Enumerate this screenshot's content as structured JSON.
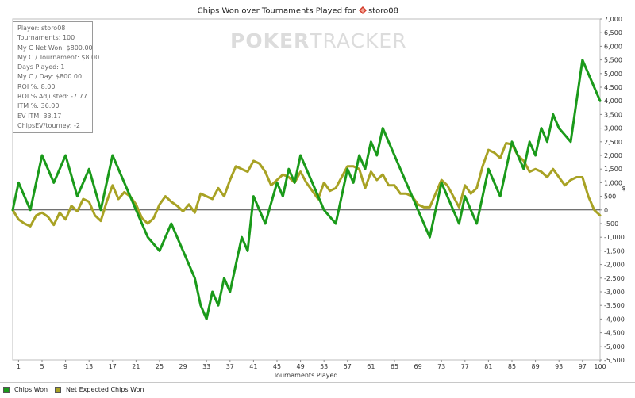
{
  "chart_data": {
    "type": "line",
    "title": "Chips Won over Tournaments Played for",
    "player_name": "storo08",
    "xlabel": "Tournaments Played",
    "ylabel": "$",
    "xlim": [
      0,
      100
    ],
    "ylim": [
      -5500,
      7000
    ],
    "y_ticks": [
      7000,
      6500,
      6000,
      5500,
      5000,
      4500,
      4000,
      3500,
      3000,
      2500,
      2000,
      1500,
      1000,
      500,
      0,
      -500,
      -1000,
      -1500,
      -2000,
      -2500,
      -3000,
      -3500,
      -4000,
      -4500,
      -5000,
      -5500
    ],
    "y_tick_labels": [
      "7,000",
      "6,500",
      "6,000",
      "5,500",
      "5,000",
      "4,500",
      "4,000",
      "3,500",
      "3,000",
      "2,500",
      "2,000",
      "1,500",
      "1,000",
      "500",
      "0",
      "-500",
      "-1,000",
      "-1,500",
      "-2,000",
      "-2,500",
      "-3,000",
      "-3,500",
      "-4,000",
      "-4,500",
      "-5,000",
      "-5,500"
    ],
    "x_ticks": [
      1,
      5,
      9,
      13,
      17,
      21,
      25,
      29,
      33,
      37,
      41,
      45,
      49,
      53,
      57,
      61,
      65,
      69,
      73,
      77,
      81,
      85,
      89,
      93,
      97,
      100
    ],
    "x_tick_labels": [
      "1",
      "5",
      "9",
      "13",
      "17",
      "21",
      "25",
      "29",
      "33",
      "37",
      "41",
      "45",
      "49",
      "53",
      "57",
      "61",
      "65",
      "69",
      "73",
      "77",
      "81",
      "85",
      "89",
      "93",
      "97",
      "100"
    ],
    "grid": false,
    "legend": "bottom-left",
    "series": [
      {
        "name": "Chips Won",
        "color": "#1a9a1a",
        "x": [
          0,
          1,
          3,
          5,
          7,
          9,
          11,
          13,
          15,
          17,
          19,
          21,
          23,
          25,
          27,
          29,
          31,
          32,
          33,
          34,
          35,
          36,
          37,
          38,
          39,
          40,
          41,
          43,
          45,
          46,
          47,
          48,
          49,
          51,
          53,
          55,
          57,
          58,
          59,
          60,
          61,
          62,
          63,
          65,
          67,
          69,
          71,
          72,
          73,
          75,
          76,
          77,
          79,
          81,
          83,
          85,
          87,
          88,
          89,
          90,
          91,
          92,
          93,
          95,
          97,
          99,
          100
        ],
        "y": [
          0,
          1000,
          0,
          2000,
          1000,
          2000,
          500,
          1500,
          0,
          2000,
          1000,
          0,
          -1000,
          -1500,
          -500,
          -1500,
          -2500,
          -3500,
          -4000,
          -3000,
          -3500,
          -2500,
          -3000,
          -2000,
          -1000,
          -1500,
          500,
          -500,
          1000,
          500,
          1500,
          1000,
          2000,
          1000,
          0,
          -500,
          1500,
          1000,
          2000,
          1500,
          2500,
          2000,
          3000,
          2000,
          1000,
          0,
          -1000,
          0,
          1000,
          0,
          -500,
          500,
          -500,
          1500,
          500,
          2500,
          1500,
          2500,
          2000,
          3000,
          2500,
          3500,
          3000,
          2500,
          5500,
          4500,
          4000
        ]
      },
      {
        "name": "Net Expected Chips Won",
        "color": "#a8a224",
        "x": [
          0,
          1,
          2,
          3,
          4,
          5,
          6,
          7,
          8,
          9,
          10,
          11,
          12,
          13,
          14,
          15,
          16,
          17,
          18,
          19,
          20,
          21,
          22,
          23,
          24,
          25,
          26,
          27,
          28,
          29,
          30,
          31,
          32,
          33,
          34,
          35,
          36,
          37,
          38,
          39,
          40,
          41,
          42,
          43,
          44,
          45,
          46,
          47,
          48,
          49,
          50,
          51,
          52,
          53,
          54,
          55,
          56,
          57,
          58,
          59,
          60,
          61,
          62,
          63,
          64,
          65,
          66,
          67,
          68,
          69,
          70,
          71,
          72,
          73,
          74,
          75,
          76,
          77,
          78,
          79,
          80,
          81,
          82,
          83,
          84,
          85,
          86,
          87,
          88,
          89,
          90,
          91,
          92,
          93,
          94,
          95,
          96,
          97,
          98,
          99,
          100
        ],
        "y": [
          0,
          -350,
          -500,
          -600,
          -200,
          -100,
          -250,
          -550,
          -100,
          -350,
          150,
          -50,
          400,
          300,
          -200,
          -400,
          300,
          900,
          400,
          650,
          500,
          200,
          -300,
          -500,
          -300,
          200,
          500,
          300,
          150,
          -50,
          200,
          -100,
          600,
          500,
          400,
          800,
          500,
          1100,
          1600,
          1500,
          1400,
          1800,
          1700,
          1400,
          900,
          1100,
          1300,
          1200,
          1000,
          1400,
          1000,
          700,
          400,
          1000,
          700,
          800,
          1200,
          1600,
          1600,
          1500,
          800,
          1400,
          1100,
          1300,
          900,
          900,
          600,
          600,
          500,
          200,
          100,
          100,
          600,
          1100,
          900,
          500,
          100,
          900,
          600,
          800,
          1600,
          2200,
          2100,
          1900,
          2450,
          2400,
          2000,
          1800,
          1400,
          1500,
          1400,
          1200,
          1500,
          1200,
          900,
          1100,
          1200,
          1200,
          500,
          0,
          -200
        ]
      }
    ]
  },
  "stats": [
    "Player: storo08",
    "Tournaments: 100",
    "My C Net Won: $800.00",
    "My C / Tournament: $8.00",
    "Days Played: 1",
    "My C / Day: $800.00",
    "ROI %: 8.00",
    "ROI % Adjusted: -7.77",
    "ITM %: 36.00",
    "EV ITM: 33.17",
    "ChipsEV/tourney: -2"
  ],
  "watermark": {
    "bold": "POKER",
    "thin": "TRACKER"
  },
  "legend": {
    "items": [
      {
        "label": "Chips Won",
        "color": "#1a9a1a"
      },
      {
        "label": "Net Expected Chips Won",
        "color": "#a8a224"
      }
    ]
  },
  "title_icon": "poker-chip-icon",
  "title_icon_color": "#d23a2a"
}
